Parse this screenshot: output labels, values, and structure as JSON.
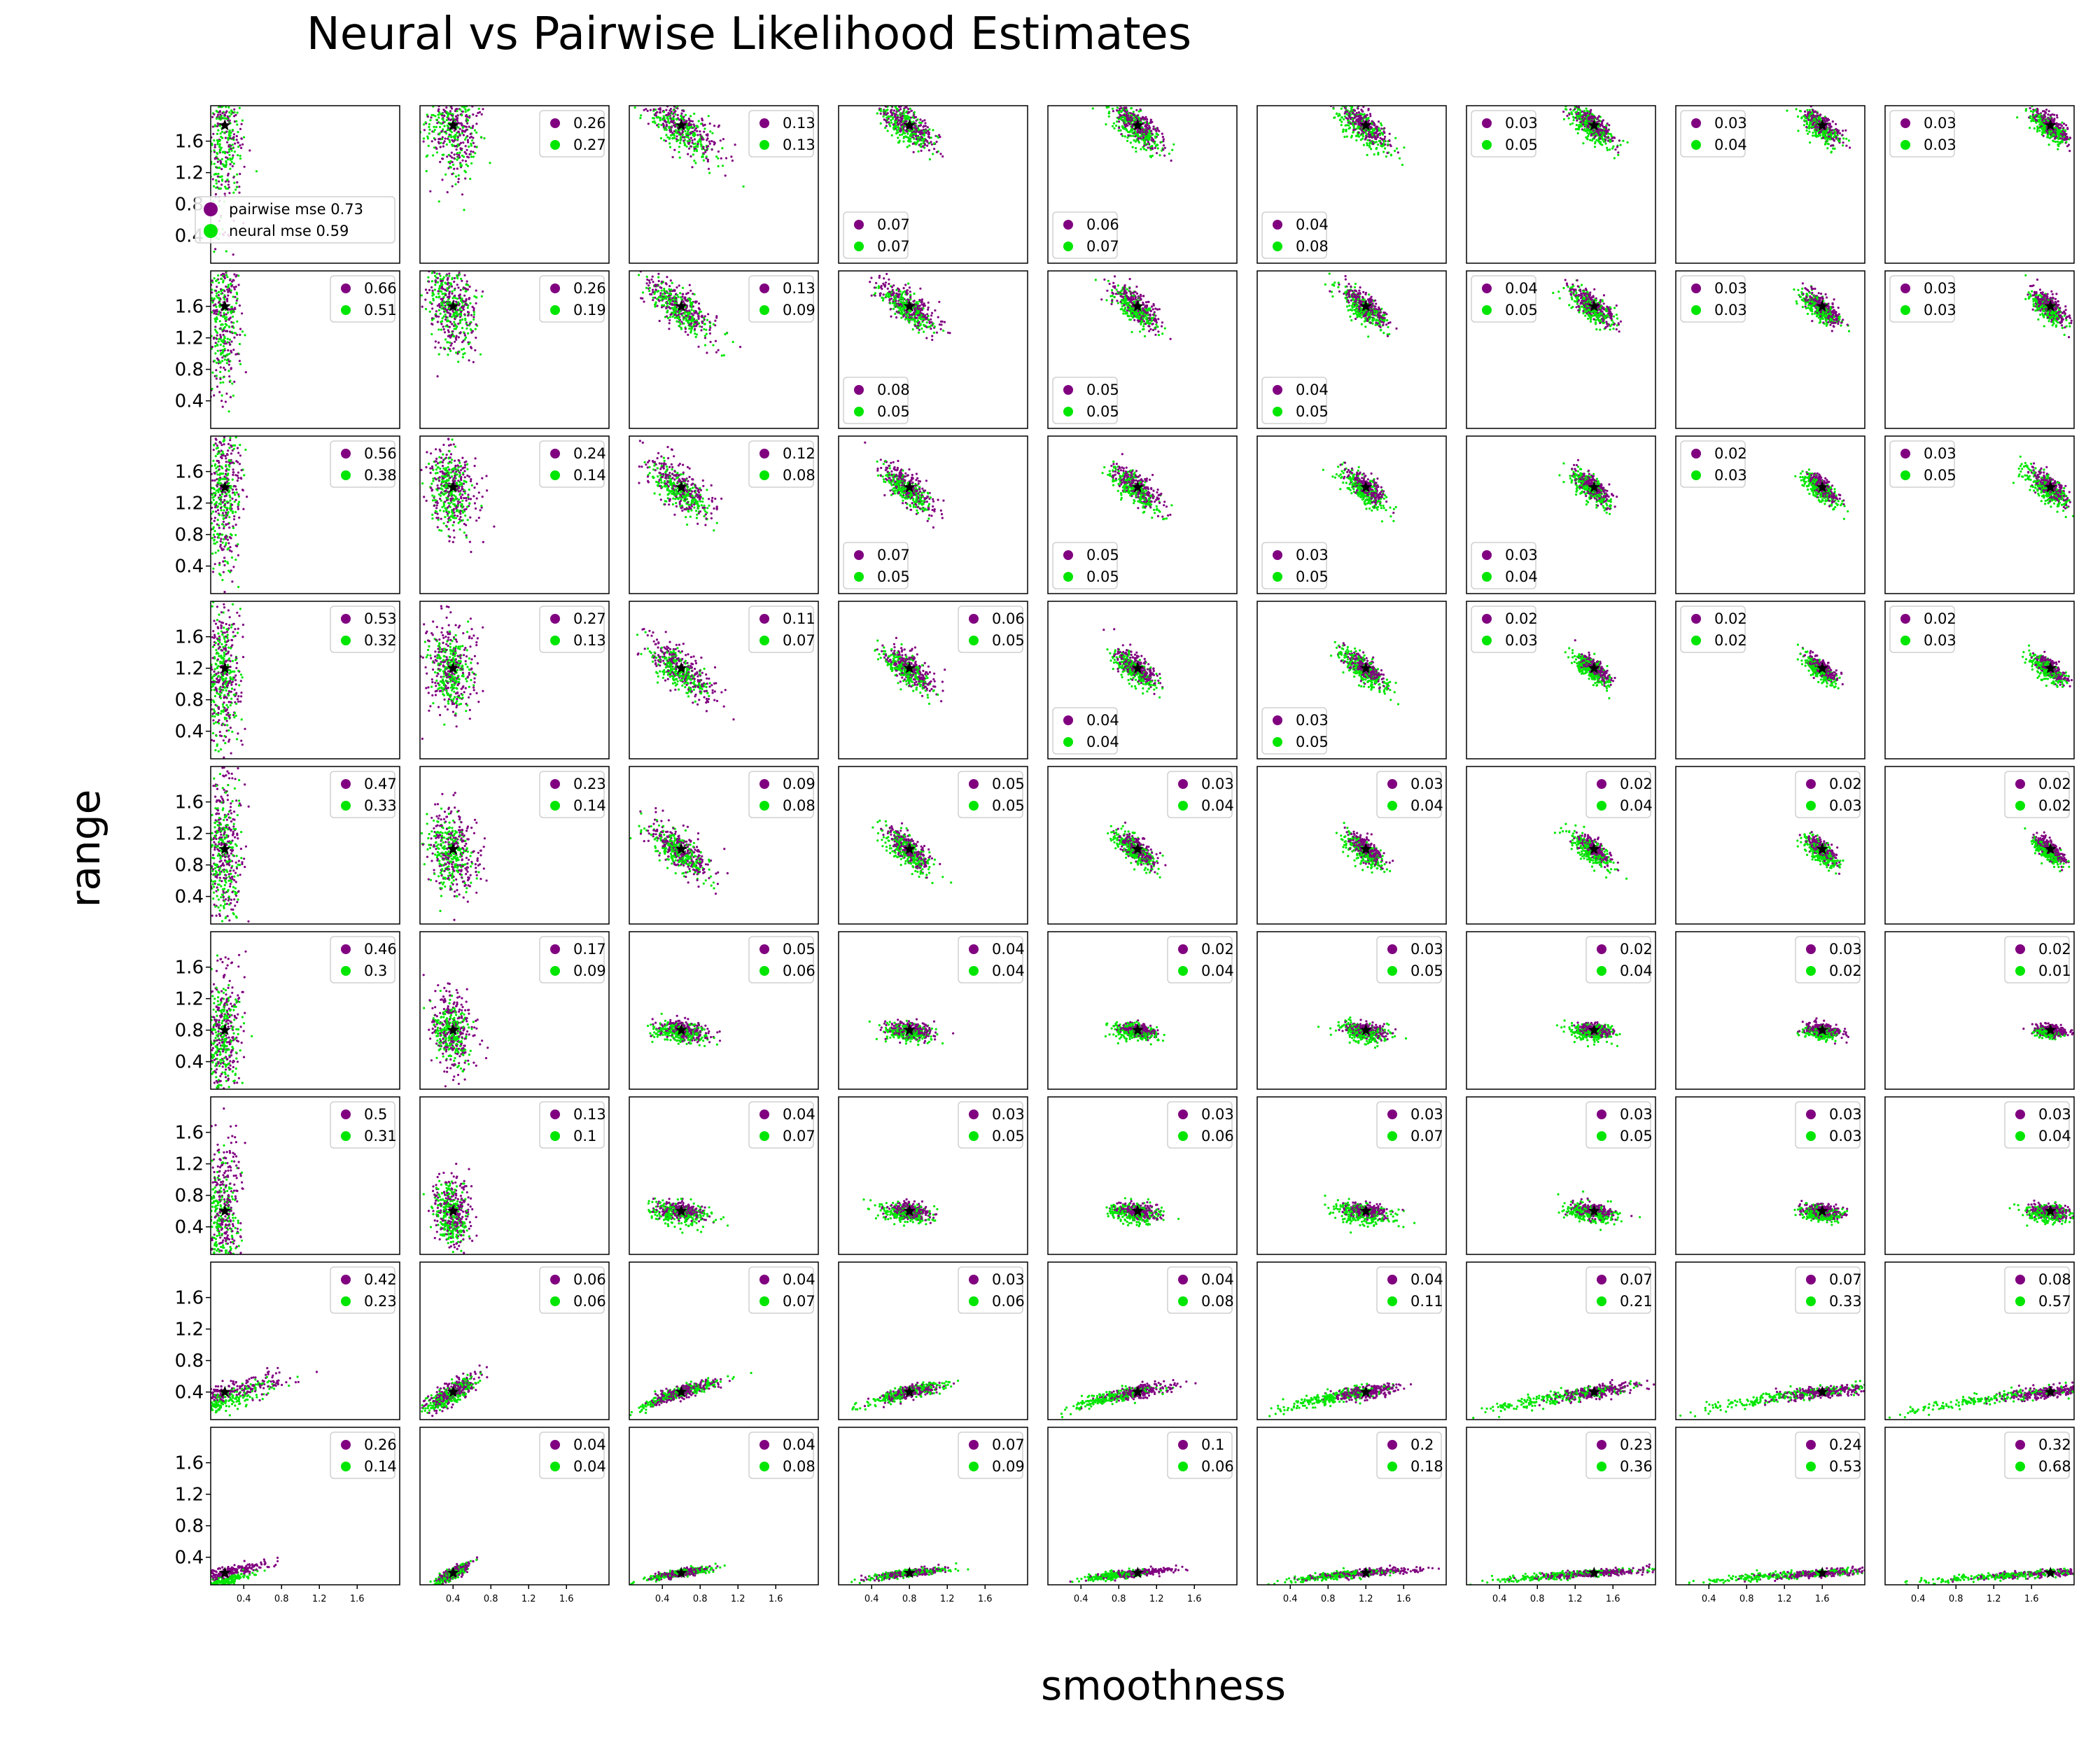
{
  "chart_data": {
    "type": "scatter",
    "title": "Neural vs Pairwise Likelihood Estimates",
    "xlabel": "smoothness",
    "ylabel": "range",
    "grid": false,
    "xlim": [
      0.05,
      2.05
    ],
    "ylim": [
      0.05,
      2.05
    ],
    "x_ticks": [
      "0.4",
      "0.8",
      "1.2",
      "1.6"
    ],
    "y_ticks": [
      "0.4",
      "0.8",
      "1.2",
      "1.6"
    ],
    "smoothness_values": [
      0.2,
      0.4,
      0.6,
      0.8,
      1.0,
      1.2,
      1.4,
      1.6,
      1.8
    ],
    "range_values": [
      1.8,
      1.6,
      1.4,
      1.2,
      1.0,
      0.8,
      0.6,
      0.4,
      0.2
    ],
    "colors": {
      "pairwise": "#800080",
      "neural": "#00e600",
      "true_parameter": "#000000"
    },
    "series": [
      {
        "name": "pairwise",
        "color": "#800080"
      },
      {
        "name": "neural",
        "color": "#00e600"
      }
    ],
    "first_legend": [
      "pairwise mse 0.73",
      "neural mse 0.59"
    ],
    "mse_pairwise": [
      [
        "0.73",
        "0.26",
        "0.13",
        "0.07",
        "0.06",
        "0.04",
        "0.03",
        "0.03",
        "0.03"
      ],
      [
        "0.66",
        "0.26",
        "0.13",
        "0.08",
        "0.05",
        "0.04",
        "0.04",
        "0.03",
        "0.03"
      ],
      [
        "0.56",
        "0.24",
        "0.12",
        "0.07",
        "0.05",
        "0.03",
        "0.03",
        "0.02",
        "0.03"
      ],
      [
        "0.53",
        "0.27",
        "0.11",
        "0.06",
        "0.04",
        "0.03",
        "0.02",
        "0.02",
        "0.02"
      ],
      [
        "0.47",
        "0.23",
        "0.09",
        "0.05",
        "0.03",
        "0.03",
        "0.02",
        "0.02",
        "0.02"
      ],
      [
        "0.46",
        "0.17",
        "0.05",
        "0.04",
        "0.02",
        "0.03",
        "0.02",
        "0.03",
        "0.02"
      ],
      [
        "0.5",
        "0.13",
        "0.04",
        "0.03",
        "0.03",
        "0.03",
        "0.03",
        "0.03",
        "0.03"
      ],
      [
        "0.42",
        "0.06",
        "0.04",
        "0.03",
        "0.04",
        "0.04",
        "0.07",
        "0.07",
        "0.08"
      ],
      [
        "0.26",
        "0.04",
        "0.04",
        "0.07",
        "0.1",
        "0.2",
        "0.23",
        "0.24",
        "0.32"
      ]
    ],
    "mse_neural": [
      [
        "0.59",
        "0.27",
        "0.13",
        "0.07",
        "0.07",
        "0.08",
        "0.05",
        "0.04",
        "0.03"
      ],
      [
        "0.51",
        "0.19",
        "0.09",
        "0.05",
        "0.05",
        "0.05",
        "0.05",
        "0.03",
        "0.03"
      ],
      [
        "0.38",
        "0.14",
        "0.08",
        "0.05",
        "0.05",
        "0.05",
        "0.04",
        "0.03",
        "0.05"
      ],
      [
        "0.32",
        "0.13",
        "0.07",
        "0.05",
        "0.04",
        "0.05",
        "0.03",
        "0.02",
        "0.03"
      ],
      [
        "0.33",
        "0.14",
        "0.08",
        "0.05",
        "0.04",
        "0.04",
        "0.04",
        "0.03",
        "0.02"
      ],
      [
        "0.3",
        "0.09",
        "0.06",
        "0.04",
        "0.04",
        "0.05",
        "0.04",
        "0.02",
        "0.01"
      ],
      [
        "0.31",
        "0.1",
        "0.07",
        "0.05",
        "0.06",
        "0.07",
        "0.05",
        "0.03",
        "0.04"
      ],
      [
        "0.23",
        "0.06",
        "0.07",
        "0.06",
        "0.08",
        "0.11",
        "0.21",
        "0.33",
        "0.57"
      ],
      [
        "0.14",
        "0.04",
        "0.08",
        "0.09",
        "0.06",
        "0.18",
        "0.36",
        "0.53",
        "0.68"
      ]
    ],
    "legend_position": [
      [
        "left",
        "top-right",
        "top-right",
        "bottom-left",
        "bottom-left",
        "bottom-left",
        "top-left",
        "top-left",
        "top-left"
      ],
      [
        "top-right",
        "top-right",
        "top-right",
        "bottom-left",
        "bottom-left",
        "bottom-left",
        "top-left",
        "top-left",
        "top-left"
      ],
      [
        "top-right",
        "top-right",
        "top-right",
        "bottom-left",
        "bottom-left",
        "bottom-left",
        "bottom-left",
        "top-left",
        "top-left"
      ],
      [
        "top-right",
        "top-right",
        "top-right",
        "top-right",
        "bottom-left",
        "bottom-left",
        "top-left",
        "top-left",
        "top-left"
      ],
      [
        "top-right",
        "top-right",
        "top-right",
        "top-right",
        "top-right",
        "top-right",
        "top-right",
        "top-right",
        "top-right"
      ],
      [
        "top-right",
        "top-right",
        "top-right",
        "top-right",
        "top-right",
        "top-right",
        "top-right",
        "top-right",
        "top-right"
      ],
      [
        "top-right",
        "top-right",
        "top-right",
        "top-right",
        "top-right",
        "top-right",
        "top-right",
        "top-right",
        "top-right"
      ],
      [
        "top-right",
        "top-right",
        "top-right",
        "top-right",
        "top-right",
        "top-right",
        "top-right",
        "top-right",
        "top-right"
      ],
      [
        "top-right",
        "top-right",
        "top-right",
        "top-right",
        "top-right",
        "top-right",
        "top-right",
        "top-right",
        "top-right"
      ]
    ]
  }
}
